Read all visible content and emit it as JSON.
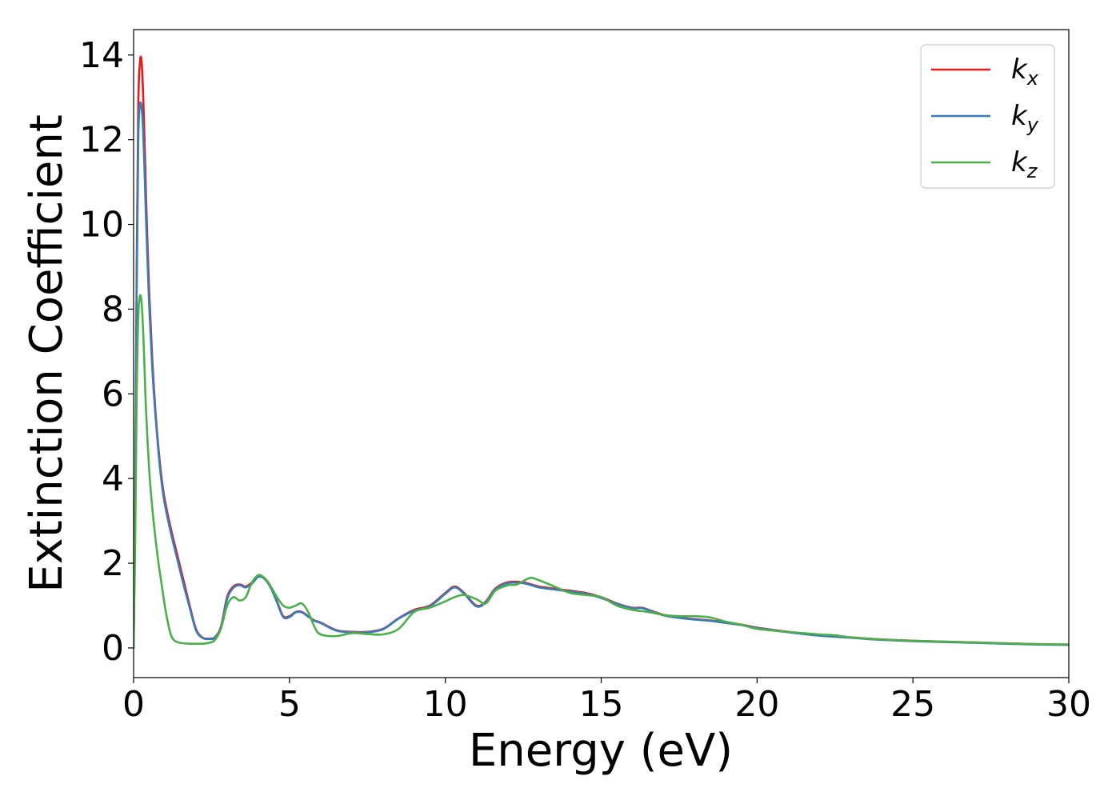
{
  "chart_data": {
    "type": "line",
    "xlabel": "Energy (eV)",
    "ylabel": "Extinction Coefficient",
    "xlim": [
      0,
      30
    ],
    "ylim": [
      -0.7,
      14.6
    ],
    "xticks": [
      0,
      5,
      10,
      15,
      20,
      25,
      30
    ],
    "yticks": [
      0,
      2,
      4,
      6,
      8,
      10,
      12,
      14
    ],
    "grid": false,
    "legend_position": "top-right",
    "series": [
      {
        "name_base": "k",
        "name_sub": "x",
        "color": "#e41a1c",
        "x": [
          0,
          0.05,
          0.1,
          0.15,
          0.2,
          0.25,
          0.3,
          0.35,
          0.4,
          0.5,
          0.6,
          0.7,
          0.8,
          0.9,
          1.0,
          1.2,
          1.4,
          1.6,
          1.8,
          2.0,
          2.2,
          2.4,
          2.6,
          2.8,
          3.0,
          3.2,
          3.4,
          3.6,
          3.8,
          4.0,
          4.2,
          4.4,
          4.6,
          4.8,
          5.0,
          5.2,
          5.4,
          5.6,
          5.8,
          6.0,
          6.5,
          7.0,
          7.5,
          8.0,
          8.5,
          9.0,
          9.5,
          10.0,
          10.3,
          10.6,
          11.0,
          11.3,
          11.6,
          12.0,
          12.5,
          13.0,
          13.5,
          14.0,
          14.5,
          15.0,
          15.5,
          16.0,
          16.3,
          16.6,
          17.0,
          17.5,
          18.0,
          18.5,
          19.0,
          19.5,
          20.0,
          21.0,
          22.0,
          23.0,
          24.0,
          25.0,
          26.0,
          27.0,
          28.0,
          29.0,
          30.0
        ],
        "y": [
          0,
          3.5,
          9.0,
          12.8,
          13.8,
          13.9,
          13.2,
          12.0,
          10.6,
          8.4,
          6.8,
          5.6,
          4.7,
          4.0,
          3.5,
          2.8,
          2.2,
          1.6,
          1.0,
          0.45,
          0.25,
          0.22,
          0.25,
          0.5,
          1.2,
          1.45,
          1.5,
          1.45,
          1.55,
          1.7,
          1.65,
          1.45,
          1.1,
          0.75,
          0.75,
          0.85,
          0.85,
          0.75,
          0.65,
          0.6,
          0.42,
          0.38,
          0.38,
          0.45,
          0.7,
          0.9,
          1.0,
          1.3,
          1.45,
          1.3,
          1.0,
          1.1,
          1.4,
          1.55,
          1.55,
          1.45,
          1.4,
          1.35,
          1.3,
          1.2,
          1.05,
          0.95,
          0.95,
          0.88,
          0.78,
          0.72,
          0.68,
          0.65,
          0.6,
          0.55,
          0.48,
          0.38,
          0.3,
          0.25,
          0.2,
          0.17,
          0.15,
          0.13,
          0.11,
          0.09,
          0.08
        ]
      },
      {
        "name_base": "k",
        "name_sub": "y",
        "color": "#377eb8",
        "x": [
          0,
          0.05,
          0.1,
          0.15,
          0.2,
          0.25,
          0.3,
          0.35,
          0.4,
          0.5,
          0.6,
          0.7,
          0.8,
          0.9,
          1.0,
          1.2,
          1.4,
          1.6,
          1.8,
          2.0,
          2.2,
          2.4,
          2.6,
          2.8,
          3.0,
          3.2,
          3.4,
          3.6,
          3.8,
          4.0,
          4.2,
          4.4,
          4.6,
          4.8,
          5.0,
          5.2,
          5.4,
          5.6,
          5.8,
          6.0,
          6.5,
          7.0,
          7.5,
          8.0,
          8.5,
          9.0,
          9.5,
          10.0,
          10.3,
          10.6,
          11.0,
          11.3,
          11.6,
          12.0,
          12.5,
          13.0,
          13.5,
          14.0,
          14.5,
          15.0,
          15.5,
          16.0,
          16.3,
          16.6,
          17.0,
          17.5,
          18.0,
          18.5,
          19.0,
          19.5,
          20.0,
          21.0,
          22.0,
          23.0,
          24.0,
          25.0,
          26.0,
          27.0,
          28.0,
          29.0,
          30.0
        ],
        "y": [
          0,
          3.2,
          8.5,
          12.0,
          12.8,
          12.8,
          12.3,
          11.3,
          10.1,
          8.1,
          6.6,
          5.5,
          4.6,
          3.9,
          3.4,
          2.7,
          2.1,
          1.5,
          0.95,
          0.42,
          0.24,
          0.21,
          0.24,
          0.48,
          1.15,
          1.42,
          1.48,
          1.43,
          1.52,
          1.68,
          1.63,
          1.42,
          1.08,
          0.73,
          0.73,
          0.84,
          0.84,
          0.74,
          0.64,
          0.59,
          0.41,
          0.37,
          0.37,
          0.44,
          0.69,
          0.88,
          0.98,
          1.28,
          1.43,
          1.28,
          0.98,
          1.08,
          1.38,
          1.53,
          1.53,
          1.43,
          1.38,
          1.33,
          1.28,
          1.18,
          1.04,
          0.94,
          0.94,
          0.87,
          0.77,
          0.71,
          0.67,
          0.64,
          0.59,
          0.54,
          0.47,
          0.37,
          0.29,
          0.24,
          0.19,
          0.16,
          0.14,
          0.12,
          0.1,
          0.08,
          0.07
        ]
      },
      {
        "name_base": "k",
        "name_sub": "z",
        "color": "#4daf4a",
        "x": [
          0,
          0.05,
          0.1,
          0.15,
          0.2,
          0.25,
          0.3,
          0.35,
          0.4,
          0.5,
          0.6,
          0.7,
          0.8,
          0.9,
          1.0,
          1.1,
          1.2,
          1.3,
          1.4,
          1.5,
          1.6,
          1.8,
          2.0,
          2.2,
          2.4,
          2.6,
          2.8,
          3.0,
          3.2,
          3.4,
          3.6,
          3.8,
          4.0,
          4.2,
          4.4,
          4.6,
          4.8,
          5.0,
          5.2,
          5.4,
          5.6,
          5.8,
          6.0,
          6.5,
          7.0,
          7.5,
          8.0,
          8.5,
          9.0,
          9.5,
          10.0,
          10.3,
          10.6,
          11.0,
          11.3,
          11.6,
          12.0,
          12.3,
          12.7,
          13.0,
          13.5,
          14.0,
          14.5,
          15.0,
          15.5,
          16.0,
          16.5,
          17.0,
          17.5,
          18.0,
          18.5,
          19.0,
          19.5,
          20.0,
          21.0,
          22.0,
          22.5,
          23.0,
          24.0,
          25.0,
          26.0,
          27.0,
          28.0,
          29.0,
          30.0
        ],
        "y": [
          0,
          2.5,
          6.0,
          7.8,
          8.3,
          8.2,
          7.6,
          6.6,
          5.6,
          4.2,
          3.3,
          2.6,
          2.0,
          1.5,
          1.0,
          0.6,
          0.3,
          0.18,
          0.14,
          0.12,
          0.11,
          0.1,
          0.1,
          0.1,
          0.12,
          0.18,
          0.45,
          1.0,
          1.2,
          1.12,
          1.2,
          1.55,
          1.72,
          1.65,
          1.45,
          1.2,
          1.0,
          0.95,
          1.0,
          1.05,
          0.85,
          0.5,
          0.32,
          0.28,
          0.35,
          0.33,
          0.32,
          0.45,
          0.85,
          0.95,
          1.1,
          1.2,
          1.25,
          1.15,
          1.05,
          1.35,
          1.48,
          1.5,
          1.65,
          1.6,
          1.45,
          1.3,
          1.25,
          1.2,
          1.0,
          0.9,
          0.85,
          0.78,
          0.75,
          0.75,
          0.72,
          0.62,
          0.55,
          0.45,
          0.38,
          0.32,
          0.3,
          0.25,
          0.2,
          0.17,
          0.15,
          0.13,
          0.11,
          0.09,
          0.08
        ]
      }
    ]
  }
}
